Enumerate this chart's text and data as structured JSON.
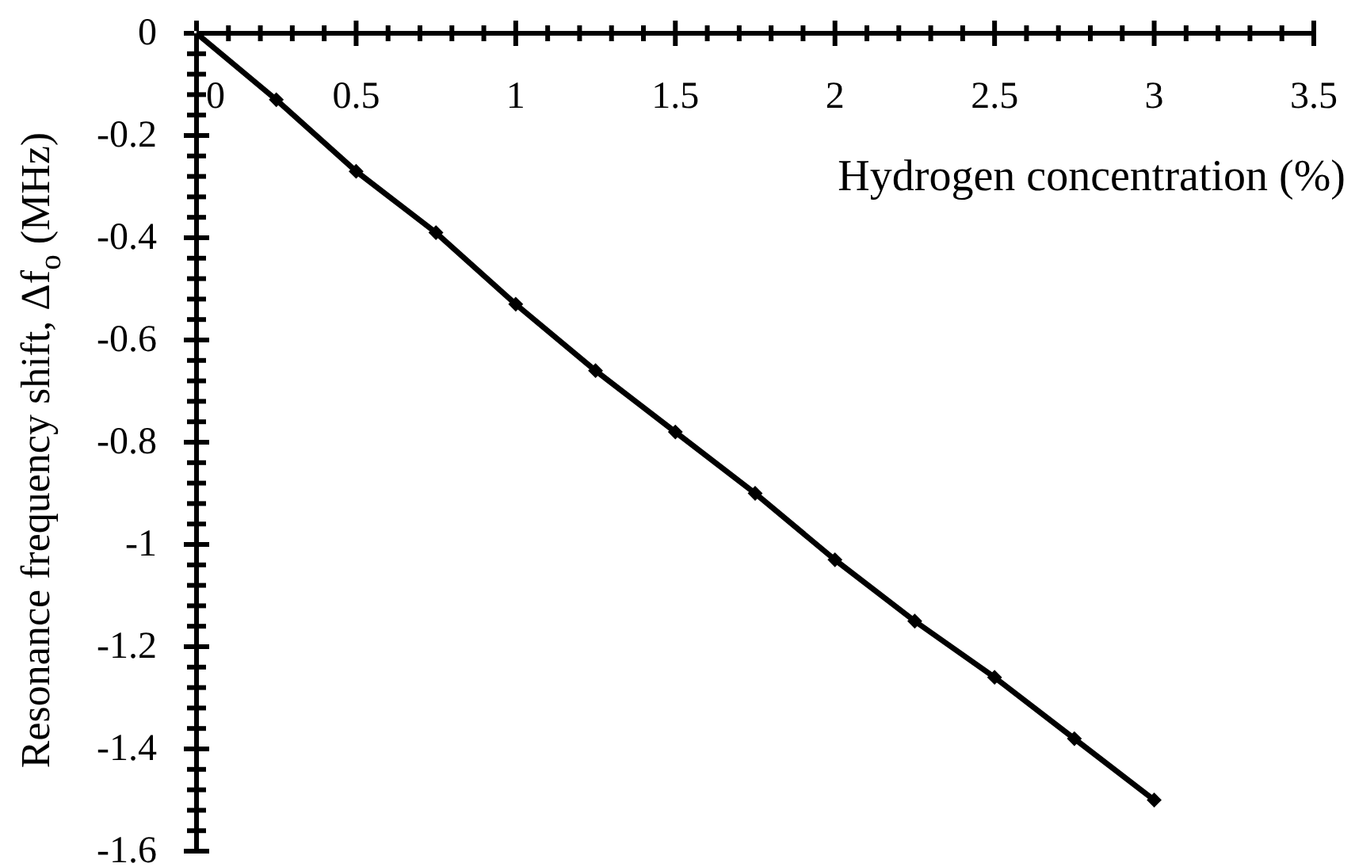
{
  "chart_data": {
    "type": "line",
    "xlabel": "Hydrogen concentration (%)",
    "ylabel": "Resonance frequency shift, Δf$_{o}$ (MHz)",
    "x": [
      0,
      0.25,
      0.5,
      0.75,
      1,
      1.25,
      1.5,
      1.75,
      2,
      2.25,
      2.5,
      2.75,
      3
    ],
    "series": [
      {
        "color": "#000000",
        "values": [
          0,
          -0.13,
          -0.27,
          -0.39,
          -0.53,
          -0.66,
          -0.78,
          -0.9,
          -1.03,
          -1.15,
          -1.26,
          -1.38,
          -1.5
        ]
      }
    ],
    "xlim": [
      0,
      3.5
    ],
    "ylim": [
      -1.6,
      0
    ],
    "xticks": [
      0,
      {
        "value": 0.1,
        "label": null
      },
      {
        "value": 0.2,
        "label": null
      },
      {
        "value": 0.3,
        "label": null
      },
      {
        "value": 0.4,
        "label": null
      },
      0.5,
      {
        "value": 0.6,
        "label": null
      },
      {
        "value": 0.7,
        "label": null
      },
      {
        "value": 0.8,
        "label": null
      },
      {
        "value": 0.9,
        "label": null
      },
      1,
      {
        "value": 1.1,
        "label": null
      },
      {
        "value": 1.2,
        "label": null
      },
      {
        "value": 1.3,
        "label": null
      },
      {
        "value": 1.4,
        "label": null
      },
      1.5,
      {
        "value": 1.6,
        "label": null
      },
      {
        "value": 1.7,
        "label": null
      },
      {
        "value": 1.8,
        "label": null
      },
      {
        "value": 1.9,
        "label": null
      },
      2,
      {
        "value": 2.1,
        "label": null
      },
      {
        "value": 2.2,
        "label": null
      },
      {
        "value": 2.3,
        "label": null
      },
      {
        "value": 2.4,
        "label": null
      },
      2.5,
      {
        "value": 2.6,
        "label": null
      },
      {
        "value": 2.7,
        "label": null
      },
      {
        "value": 2.8,
        "label": null
      },
      {
        "value": 2.9,
        "label": null
      },
      3,
      {
        "value": 3.1,
        "label": null
      },
      {
        "value": 3.2,
        "label": null
      },
      {
        "value": 3.3,
        "label": null
      },
      {
        "value": 3.4,
        "label": null
      },
      3.5
    ],
    "yticks": [
      0,
      {
        "value": -0.04,
        "label": null
      },
      {
        "value": -0.08,
        "label": null
      },
      {
        "value": -0.12,
        "label": null
      },
      {
        "value": -0.16,
        "label": null
      },
      -0.2,
      {
        "value": -0.24,
        "label": null
      },
      {
        "value": -0.28,
        "label": null
      },
      {
        "value": -0.32,
        "label": null
      },
      {
        "value": -0.36,
        "label": null
      },
      -0.4,
      {
        "value": -0.44,
        "label": null
      },
      {
        "value": -0.48,
        "label": null
      },
      {
        "value": -0.52,
        "label": null
      },
      {
        "value": -0.56,
        "label": null
      },
      -0.6,
      {
        "value": -0.64,
        "label": null
      },
      {
        "value": -0.68,
        "label": null
      },
      {
        "value": -0.72,
        "label": null
      },
      {
        "value": -0.76,
        "label": null
      },
      -0.8,
      {
        "value": -0.84,
        "label": null
      },
      {
        "value": -0.88,
        "label": null
      },
      {
        "value": -0.92,
        "label": null
      },
      {
        "value": -0.96,
        "label": null
      },
      -1,
      {
        "value": -1.04,
        "label": null
      },
      {
        "value": -1.08,
        "label": null
      },
      {
        "value": -1.12,
        "label": null
      },
      {
        "value": -1.16,
        "label": null
      },
      -1.2,
      {
        "value": -1.24,
        "label": null
      },
      {
        "value": -1.28,
        "label": null
      },
      {
        "value": -1.32,
        "label": null
      },
      {
        "value": -1.36,
        "label": null
      },
      -1.4,
      {
        "value": -1.44,
        "label": null
      },
      {
        "value": -1.48,
        "label": null
      },
      {
        "value": -1.52,
        "label": null
      },
      {
        "value": -1.56,
        "label": null
      },
      -1.6
    ],
    "marker": "diamond",
    "line_style": "solid"
  }
}
